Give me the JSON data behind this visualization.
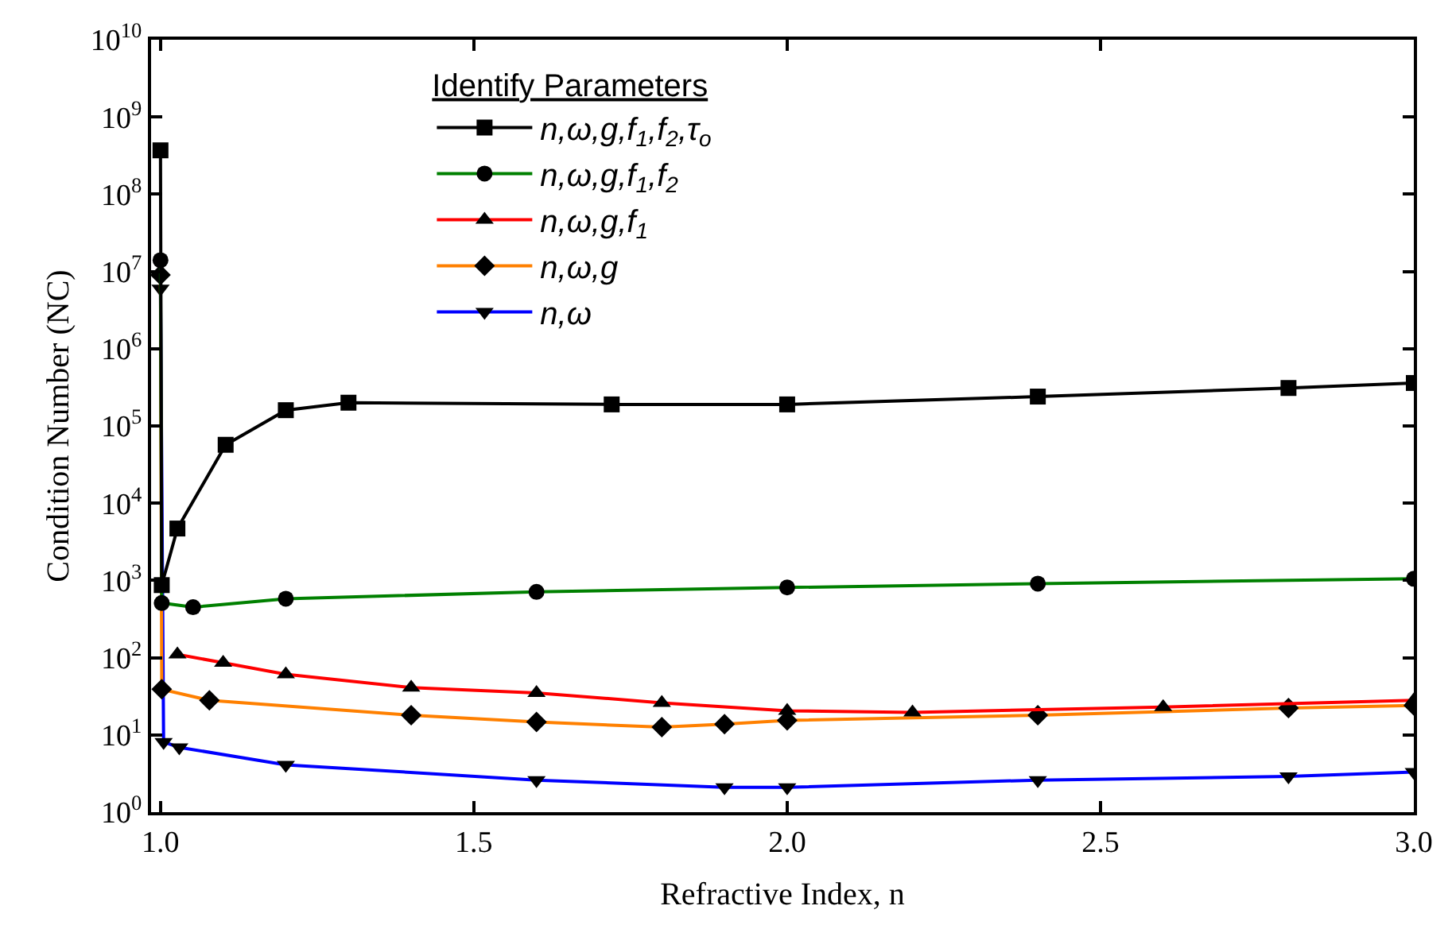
{
  "chart_data": {
    "type": "line",
    "xlabel": "Refractive Index, n",
    "ylabel": "Condition Number (NC)",
    "legend_title": "Identify Parameters",
    "legend": "top",
    "log": "y",
    "xlim": [
      0.985,
      3.0
    ],
    "xticks": [
      {
        "value": 1,
        "label": "1.0"
      },
      1.5,
      {
        "value": 2,
        "label": "2.0"
      },
      2.5,
      {
        "value": 3,
        "label": "3.0"
      }
    ],
    "ylim": [
      1,
      10000000000
    ],
    "yticks": [
      {
        "value": 1,
        "label": "10$^{0}$"
      },
      {
        "value": 10,
        "label": "10$^{1}$"
      },
      {
        "value": 100,
        "label": "10$^{2}$"
      },
      {
        "value": 1000,
        "label": "10$^{3}$"
      },
      {
        "value": 10000,
        "label": "10$^{4}$"
      },
      {
        "value": 100000,
        "label": "10$^{5}$"
      },
      {
        "value": 1000000,
        "label": "10$^{6}$"
      },
      {
        "value": 10000000,
        "label": "10$^{7}$"
      },
      {
        "value": 100000000,
        "label": "10$^{8}$"
      },
      {
        "value": 1000000000,
        "label": "10$^{9}$"
      },
      {
        "value": 10000000000,
        "label": "10$^{10}$"
      }
    ],
    "series": [
      {
        "name": "n,ω,g,f$_{1}$,f$_{2}$,τ$_{o}$",
        "color": "#000000",
        "marker": "square",
        "x": [
          1.0,
          1.002,
          1.027,
          1.104,
          1.2,
          1.3,
          1.72,
          2.0,
          2.4,
          2.8,
          3.0
        ],
        "values": [
          370000000,
          870,
          4700,
          57000,
          160000,
          200000,
          190000,
          190000,
          240000,
          310000,
          360000
        ]
      },
      {
        "name": "n,ω,g,f$_{1}$,f$_{2}$",
        "color": "#008000",
        "marker": "circle",
        "x": [
          1.0,
          1.002,
          1.052,
          1.2,
          1.6,
          2.0,
          2.4,
          3.0
        ],
        "values": [
          14000000,
          510,
          450,
          580,
          710,
          810,
          910,
          1050
        ]
      },
      {
        "name": "n,ω,g,f$_{1}$",
        "color": "#ff0000",
        "marker": "triangle",
        "x": [
          1.027,
          1.1,
          1.2,
          1.4,
          1.6,
          1.8,
          2.0,
          2.2,
          2.6,
          3.0
        ],
        "values": [
          110,
          86,
          61,
          41,
          35,
          26,
          20.5,
          19.6,
          23,
          28
        ]
      },
      {
        "name": "n,ω,g",
        "color": "#ff8000",
        "marker": "diamond",
        "x": [
          1.0,
          1.002,
          1.078,
          1.4,
          1.6,
          1.8,
          1.9,
          2.0,
          2.4,
          2.8,
          3.0
        ],
        "values": [
          9000000,
          39,
          28,
          18,
          14.7,
          12.6,
          13.8,
          15.4,
          18,
          22.3,
          24
        ]
      },
      {
        "name": "n,ω",
        "color": "#0000ff",
        "marker": "triangle-down",
        "x": [
          1.0,
          1.005,
          1.03,
          1.2,
          1.6,
          1.9,
          2.0,
          2.4,
          2.8,
          3.0
        ],
        "values": [
          6000000,
          8.1,
          6.9,
          4.1,
          2.6,
          2.1,
          2.1,
          2.6,
          2.9,
          3.3
        ]
      }
    ]
  }
}
